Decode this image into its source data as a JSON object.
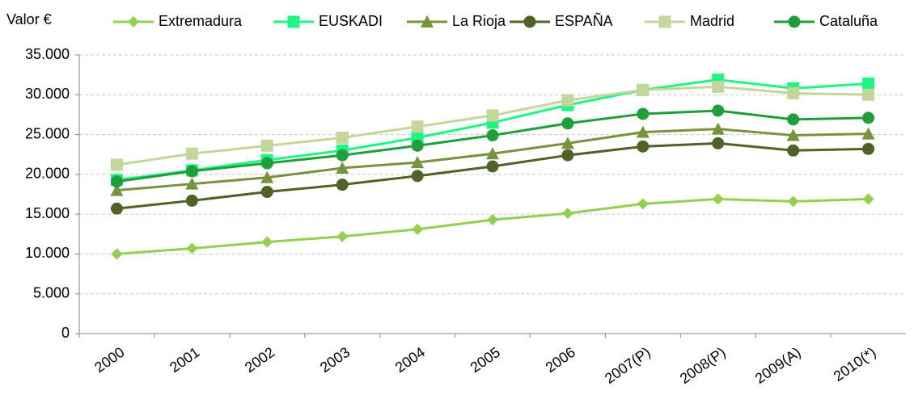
{
  "chart_data": {
    "type": "line",
    "y_label": "Valor €",
    "categories": [
      "2000",
      "2001",
      "2002",
      "2003",
      "2004",
      "2005",
      "2006",
      "2007(P)",
      "2008(P)",
      "2009(A)",
      "2010(*)"
    ],
    "series": [
      {
        "name": "Extremadura",
        "color": "#92d050",
        "marker": "diamond",
        "values": [
          10000,
          10700,
          11500,
          12200,
          13100,
          14300,
          15100,
          16300,
          16900,
          16600,
          16900
        ]
      },
      {
        "name": "EUSKADI",
        "color": "#1ef582",
        "marker": "square",
        "values": [
          19300,
          20500,
          21800,
          23000,
          24600,
          26500,
          28700,
          30600,
          31900,
          30800,
          31400
        ]
      },
      {
        "name": "La Rioja",
        "color": "#77933c",
        "marker": "triangle",
        "values": [
          18000,
          18800,
          19600,
          20800,
          21500,
          22600,
          23900,
          25300,
          25700,
          24900,
          25100
        ]
      },
      {
        "name": "ESPAÑA",
        "color": "#4f6228",
        "marker": "circle",
        "values": [
          15700,
          16700,
          17800,
          18700,
          19800,
          21000,
          22400,
          23500,
          23900,
          23000,
          23200
        ]
      },
      {
        "name": "Madrid",
        "color": "#c3d69b",
        "marker": "square",
        "values": [
          21200,
          22600,
          23600,
          24600,
          26000,
          27400,
          29300,
          30600,
          31000,
          30200,
          30000
        ]
      },
      {
        "name": "Cataluña",
        "color": "#1f9e3a",
        "marker": "circle",
        "values": [
          19100,
          20400,
          21400,
          22400,
          23600,
          24900,
          26400,
          27600,
          28000,
          26900,
          27100
        ]
      }
    ],
    "ylim": [
      0,
      35000
    ],
    "yticks": [
      0,
      {
        "value": 5000,
        "label": "5.000"
      },
      {
        "value": 10000,
        "label": "10.000"
      },
      {
        "value": 15000,
        "label": "15.000"
      },
      {
        "value": 20000,
        "label": "20.000"
      },
      {
        "value": 25000,
        "label": "25.000"
      },
      {
        "value": 30000,
        "label": "30.000"
      },
      {
        "value": 35000,
        "label": "35.000"
      }
    ],
    "grid": true,
    "legend": "top"
  }
}
